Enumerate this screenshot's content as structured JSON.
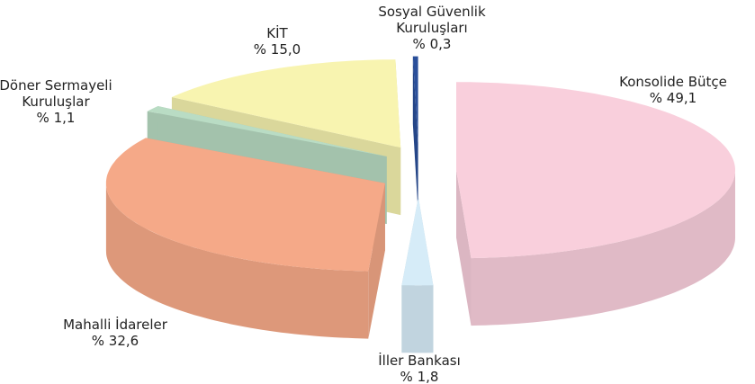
{
  "chart_data": {
    "type": "pie3d",
    "categories": [
      "Konsolide Bütçe",
      "İller Bankası",
      "Mahalli İdareler",
      "Döner Sermayeli Kuruluşlar",
      "KİT",
      "Sosyal Güvenlik Kuruluşları"
    ],
    "values": [
      49.1,
      1.8,
      32.6,
      1.1,
      15.0,
      0.3
    ],
    "value_labels": [
      "% 49,1",
      "% 1,8",
      "% 32,6",
      "% 1,1",
      "% 15,0",
      "% 0,3"
    ],
    "colors": [
      "#f9cfdc",
      "#d6ecf8",
      "#f5a988",
      "#b9dcc4",
      "#f8f4b0",
      "#2a4f9a"
    ]
  }
}
